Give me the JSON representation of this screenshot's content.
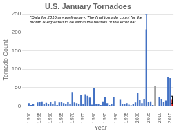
{
  "chart_data": {
    "type": "bar",
    "title": "U.S. January Tornadoes",
    "xlabel": "Year",
    "ylabel": "Tornado Count",
    "annotation": "*Data for 2016 are preliminary. The final tornado count for the\nmonth is expected to be within the bounds of the error bar.",
    "categories": [
      "1950",
      null,
      null,
      null,
      null,
      "1955",
      null,
      null,
      null,
      null,
      "1960",
      null,
      null,
      null,
      null,
      "1965",
      null,
      null,
      null,
      null,
      "1970",
      null,
      null,
      null,
      null,
      "1975",
      null,
      null,
      null,
      null,
      "1980",
      null,
      null,
      null,
      null,
      "1985",
      null,
      null,
      null,
      null,
      "1990",
      null,
      null,
      null,
      null,
      "1995",
      null,
      null,
      null,
      null,
      "2000",
      null,
      null,
      null,
      null,
      "2005",
      null,
      null,
      null,
      null,
      "2010",
      null,
      null,
      null,
      null,
      "2015",
      null
    ],
    "values": [
      8,
      3,
      5,
      1,
      10,
      12,
      13,
      6,
      9,
      5,
      11,
      7,
      14,
      3,
      10,
      12,
      8,
      5,
      12,
      6,
      38,
      10,
      8,
      7,
      30,
      5,
      32,
      28,
      23,
      4,
      50,
      5,
      6,
      3,
      13,
      25,
      8,
      3,
      6,
      25,
      0,
      0,
      17,
      5,
      7,
      8,
      4,
      2,
      6,
      10,
      35,
      16,
      8,
      19,
      208,
      12,
      13,
      3,
      55,
      0,
      25,
      20,
      12,
      15,
      78,
      76,
      17
    ],
    "colors": [
      "#4472C4",
      "#4472C4",
      "#4472C4",
      "#4472C4",
      "#4472C4",
      "#4472C4",
      "#4472C4",
      "#4472C4",
      "#4472C4",
      "#4472C4",
      "#4472C4",
      "#4472C4",
      "#4472C4",
      "#4472C4",
      "#4472C4",
      "#4472C4",
      "#4472C4",
      "#4472C4",
      "#4472C4",
      "#4472C4",
      "#4472C4",
      "#4472C4",
      "#4472C4",
      "#4472C4",
      "#4472C4",
      "#4472C4",
      "#4472C4",
      "#4472C4",
      "#4472C4",
      "#4472C4",
      "#4472C4",
      "#4472C4",
      "#4472C4",
      "#4472C4",
      "#4472C4",
      "#4472C4",
      "#4472C4",
      "#4472C4",
      "#4472C4",
      "#4472C4",
      "#4472C4",
      "#4472C4",
      "#4472C4",
      "#4472C4",
      "#4472C4",
      "#4472C4",
      "#4472C4",
      "#4472C4",
      "#4472C4",
      "#4472C4",
      "#4472C4",
      "#4472C4",
      "#4472C4",
      "#4472C4",
      "#4472C4",
      "#4472C4",
      "#4472C4",
      "#4472C4",
      "#A0A0A0",
      "#4472C4",
      "#4472C4",
      "#4472C4",
      "#4472C4",
      "#4472C4",
      "#4472C4",
      "#4472C4",
      "#C00000"
    ],
    "error_low": [
      null,
      null,
      null,
      null,
      null,
      null,
      null,
      null,
      null,
      null,
      null,
      null,
      null,
      null,
      null,
      null,
      null,
      null,
      null,
      null,
      null,
      null,
      null,
      null,
      null,
      null,
      null,
      null,
      null,
      null,
      null,
      null,
      null,
      null,
      null,
      null,
      null,
      null,
      null,
      null,
      null,
      null,
      null,
      null,
      null,
      null,
      null,
      null,
      null,
      null,
      null,
      null,
      null,
      null,
      0,
      null,
      null,
      null,
      null,
      null,
      null,
      null,
      null,
      null,
      null,
      null,
      7
    ],
    "error_high": [
      null,
      null,
      null,
      null,
      null,
      null,
      null,
      null,
      null,
      null,
      null,
      null,
      null,
      null,
      null,
      null,
      null,
      null,
      null,
      null,
      null,
      null,
      null,
      null,
      null,
      null,
      null,
      null,
      null,
      null,
      null,
      null,
      null,
      null,
      null,
      null,
      null,
      null,
      null,
      null,
      null,
      null,
      null,
      null,
      null,
      null,
      null,
      null,
      null,
      null,
      null,
      null,
      null,
      null,
      250,
      null,
      null,
      null,
      null,
      null,
      null,
      null,
      null,
      null,
      null,
      null,
      27
    ],
    "error_colors": [
      null,
      null,
      null,
      null,
      null,
      null,
      null,
      null,
      null,
      null,
      null,
      null,
      null,
      null,
      null,
      null,
      null,
      null,
      null,
      null,
      null,
      null,
      null,
      null,
      null,
      null,
      null,
      null,
      null,
      null,
      null,
      null,
      null,
      null,
      null,
      null,
      null,
      null,
      null,
      null,
      null,
      null,
      null,
      null,
      null,
      null,
      null,
      null,
      null,
      null,
      null,
      null,
      null,
      null,
      "#4472C4",
      null,
      null,
      null,
      null,
      null,
      null,
      null,
      null,
      null,
      null,
      null,
      "#000000"
    ],
    "ylim": [
      0,
      250
    ],
    "yticks": [
      0,
      50,
      100,
      150,
      200,
      250
    ],
    "grid": true
  }
}
